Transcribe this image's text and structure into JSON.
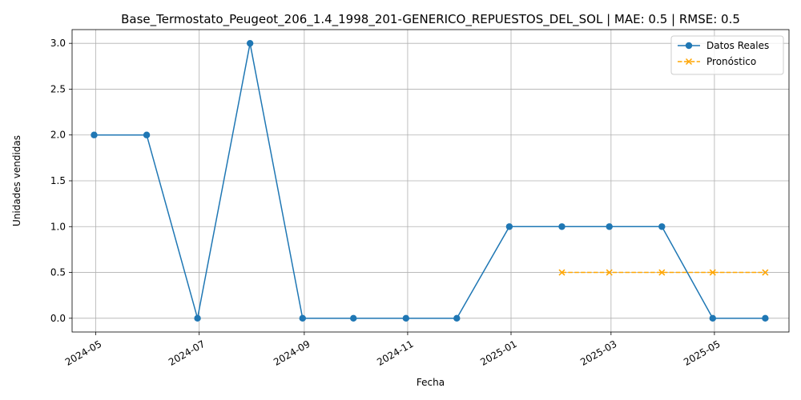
{
  "chart_data": {
    "type": "line",
    "title": "Base_Termostato_Peugeot_206_1.4_1998_201-GENERICO_REPUESTOS_DEL_SOL | MAE: 0.5 | RMSE: 0.5",
    "xlabel": "Fecha",
    "ylabel": "Unidades vendidas",
    "ylim": [
      -0.15,
      3.15
    ],
    "xlim": [
      "2024-04-17",
      "2025-06-14"
    ],
    "grid": true,
    "legend_position": "top-right",
    "x_ticks": [
      "2024-05",
      "2024-07",
      "2024-09",
      "2024-11",
      "2025-01",
      "2025-03",
      "2025-05"
    ],
    "y_ticks": [
      "0.0",
      "0.5",
      "1.0",
      "1.5",
      "2.0",
      "2.5",
      "3.0"
    ],
    "series": [
      {
        "name": "Datos Reales",
        "color": "#1f77b4",
        "marker": "circle",
        "line_style": "solid",
        "x": [
          "2024-04-30",
          "2024-05-31",
          "2024-06-30",
          "2024-07-31",
          "2024-08-31",
          "2024-09-30",
          "2024-10-31",
          "2024-11-30",
          "2024-12-31",
          "2025-01-31",
          "2025-02-28",
          "2025-03-31",
          "2025-04-30",
          "2025-05-31"
        ],
        "values": [
          2,
          2,
          0,
          3,
          0,
          0,
          0,
          0,
          1,
          1,
          1,
          1,
          0,
          0
        ]
      },
      {
        "name": "Pronóstico",
        "color": "#ffa500",
        "marker": "x",
        "line_style": "dashed",
        "x": [
          "2025-01-31",
          "2025-02-28",
          "2025-03-31",
          "2025-04-30",
          "2025-05-31"
        ],
        "values": [
          0.5,
          0.5,
          0.5,
          0.5,
          0.5
        ]
      }
    ]
  }
}
